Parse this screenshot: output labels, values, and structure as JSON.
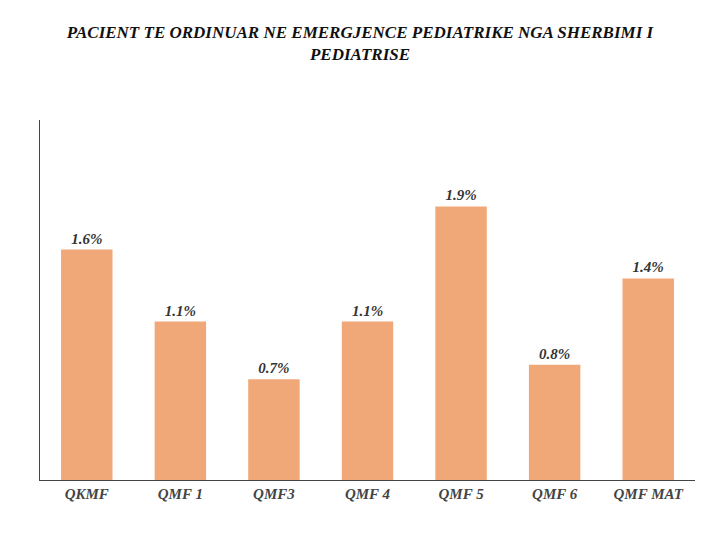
{
  "chart_data": {
    "type": "bar",
    "title": "PACIENT TE ORDINUAR NE EMERGJENCE PEDIATRIKE NGA SHERBIMI I\nPEDIATRISE",
    "categories": [
      "QKMF",
      "QMF 1",
      "QMF3",
      "QMF 4",
      "QMF 5",
      "QMF 6",
      "QMF MAT"
    ],
    "values": [
      1.6,
      1.1,
      0.7,
      1.1,
      1.9,
      0.8,
      1.4
    ],
    "value_labels": [
      "1.6%",
      "1.1%",
      "0.7%",
      "1.1%",
      "1.9%",
      "0.8%",
      "1.4%"
    ],
    "data_labels": true,
    "color": "#F0A878",
    "ylim": [
      0,
      2.5
    ],
    "yticks": [],
    "tick_labels": "x",
    "grid": false
  }
}
